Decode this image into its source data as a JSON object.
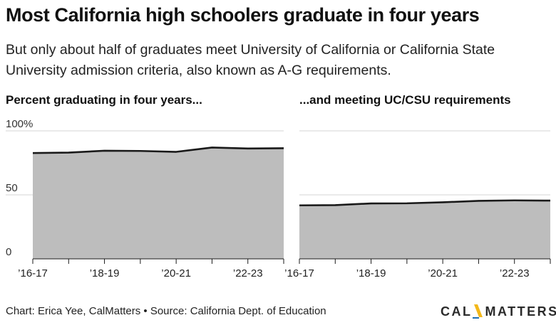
{
  "title": "Most California high schoolers graduate in four years",
  "subtitle": "But only about half of graduates meet University of California or California State University admission criteria, also known as A-G requirements.",
  "footer": "Chart: Erica Yee, CalMatters • Source: California Dept. of Education",
  "logo": {
    "left": "CAL",
    "right": "MATTERS",
    "colors": [
      "#f3b81a",
      "#1f6fb5"
    ]
  },
  "colors": {
    "fill": "#bdbdbd",
    "line": "#1a1a1a",
    "grid": "#d6d6d6",
    "axis": "#1a1a1a"
  },
  "chart_data": [
    {
      "type": "area",
      "title": "Percent graduating in four years...",
      "x": [
        "2016-17",
        "2017-18",
        "2018-19",
        "2019-20",
        "2020-21",
        "2021-22",
        "2022-23",
        "2023-24"
      ],
      "values": [
        82.7,
        83.0,
        84.5,
        84.3,
        83.6,
        87.0,
        86.2,
        86.4
      ],
      "y_ticks": [
        "100%",
        "50",
        "0"
      ],
      "ylim": [
        0,
        100
      ],
      "x_tick_labels": [
        "’16-17",
        "’18-19",
        "’20-21",
        "’22-23"
      ],
      "x_tick_label_indices": [
        0,
        2,
        4,
        6
      ],
      "grid": true
    },
    {
      "type": "area",
      "title": "...and meeting UC/CSU requirements",
      "x": [
        "2016-17",
        "2017-18",
        "2018-19",
        "2019-20",
        "2020-21",
        "2021-22",
        "2022-23",
        "2023-24"
      ],
      "values": [
        41.8,
        42.0,
        43.3,
        43.4,
        44.2,
        45.3,
        45.7,
        45.5
      ],
      "ylim": [
        0,
        100
      ],
      "x_tick_labels": [
        "’16-17",
        "’18-19",
        "’20-21",
        "’22-23"
      ],
      "x_tick_label_indices": [
        0,
        2,
        4,
        6
      ],
      "grid": true
    }
  ]
}
